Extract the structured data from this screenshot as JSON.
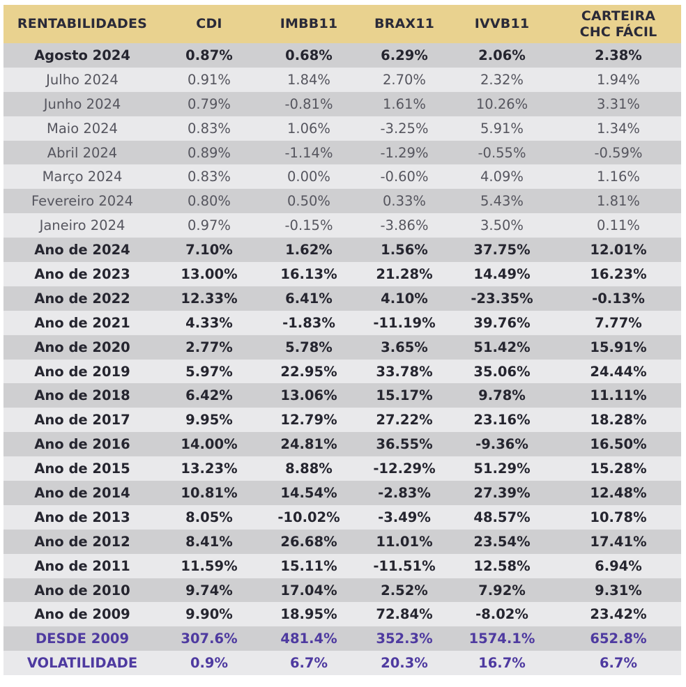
{
  "header": {
    "label": "RENTABILIDADES",
    "columns": [
      "CDI",
      "IMBB11",
      "BRAX11",
      "IVVB11"
    ],
    "last_column_line1": "CARTEIRA",
    "last_column_line2": "CHC FÁCIL"
  },
  "rows": [
    {
      "label": "Agosto 2024",
      "values": [
        "0.87%",
        "0.68%",
        "6.29%",
        "2.06%",
        "2.38%"
      ],
      "style": "bold"
    },
    {
      "label": "Julho 2024",
      "values": [
        "0.91%",
        "1.84%",
        "2.70%",
        "2.32%",
        "1.94%"
      ],
      "style": "normal"
    },
    {
      "label": "Junho 2024",
      "values": [
        "0.79%",
        "-0.81%",
        "1.61%",
        "10.26%",
        "3.31%"
      ],
      "style": "normal"
    },
    {
      "label": "Maio 2024",
      "values": [
        "0.83%",
        "1.06%",
        "-3.25%",
        "5.91%",
        "1.34%"
      ],
      "style": "normal"
    },
    {
      "label": "Abril 2024",
      "values": [
        "0.89%",
        "-1.14%",
        "-1.29%",
        "-0.55%",
        "-0.59%"
      ],
      "style": "normal"
    },
    {
      "label": "Março 2024",
      "values": [
        "0.83%",
        "0.00%",
        "-0.60%",
        "4.09%",
        "1.16%"
      ],
      "style": "normal"
    },
    {
      "label": "Fevereiro 2024",
      "values": [
        "0.80%",
        "0.50%",
        "0.33%",
        "5.43%",
        "1.81%"
      ],
      "style": "normal"
    },
    {
      "label": "Janeiro 2024",
      "values": [
        "0.97%",
        "-0.15%",
        "-3.86%",
        "3.50%",
        "0.11%"
      ],
      "style": "normal"
    },
    {
      "label": "Ano de 2024",
      "values": [
        "7.10%",
        "1.62%",
        "1.56%",
        "37.75%",
        "12.01%"
      ],
      "style": "bold"
    },
    {
      "label": "Ano de 2023",
      "values": [
        "13.00%",
        "16.13%",
        "21.28%",
        "14.49%",
        "16.23%"
      ],
      "style": "bold"
    },
    {
      "label": "Ano de 2022",
      "values": [
        "12.33%",
        "6.41%",
        "4.10%",
        "-23.35%",
        "-0.13%"
      ],
      "style": "bold"
    },
    {
      "label": "Ano de 2021",
      "values": [
        "4.33%",
        "-1.83%",
        "-11.19%",
        "39.76%",
        "7.77%"
      ],
      "style": "bold"
    },
    {
      "label": "Ano de 2020",
      "values": [
        "2.77%",
        "5.78%",
        "3.65%",
        "51.42%",
        "15.91%"
      ],
      "style": "bold"
    },
    {
      "label": "Ano de 2019",
      "values": [
        "5.97%",
        "22.95%",
        "33.78%",
        "35.06%",
        "24.44%"
      ],
      "style": "bold"
    },
    {
      "label": "Ano de 2018",
      "values": [
        "6.42%",
        "13.06%",
        "15.17%",
        "9.78%",
        "11.11%"
      ],
      "style": "bold"
    },
    {
      "label": "Ano de 2017",
      "values": [
        "9.95%",
        "12.79%",
        "27.22%",
        "23.16%",
        "18.28%"
      ],
      "style": "bold"
    },
    {
      "label": "Ano de 2016",
      "values": [
        "14.00%",
        "24.81%",
        "36.55%",
        "-9.36%",
        "16.50%"
      ],
      "style": "bold"
    },
    {
      "label": "Ano de 2015",
      "values": [
        "13.23%",
        "8.88%",
        "-12.29%",
        "51.29%",
        "15.28%"
      ],
      "style": "bold"
    },
    {
      "label": "Ano de 2014",
      "values": [
        "10.81%",
        "14.54%",
        "-2.83%",
        "27.39%",
        "12.48%"
      ],
      "style": "bold"
    },
    {
      "label": "Ano de 2013",
      "values": [
        "8.05%",
        "-10.02%",
        "-3.49%",
        "48.57%",
        "10.78%"
      ],
      "style": "bold"
    },
    {
      "label": "Ano de 2012",
      "values": [
        "8.41%",
        "26.68%",
        "11.01%",
        "23.54%",
        "17.41%"
      ],
      "style": "bold"
    },
    {
      "label": "Ano de 2011",
      "values": [
        "11.59%",
        "15.11%",
        "-11.51%",
        "12.58%",
        "6.94%"
      ],
      "style": "bold"
    },
    {
      "label": "Ano de 2010",
      "values": [
        "9.74%",
        "17.04%",
        "2.52%",
        "7.92%",
        "9.31%"
      ],
      "style": "bold"
    },
    {
      "label": "Ano de 2009",
      "values": [
        "9.90%",
        "18.95%",
        "72.84%",
        "-8.02%",
        "23.42%"
      ],
      "style": "bold"
    },
    {
      "label": "DESDE 2009",
      "values": [
        "307.6%",
        "481.4%",
        "352.3%",
        "1574.1%",
        "652.8%"
      ],
      "style": "summary"
    },
    {
      "label": "VOLATILIDADE",
      "values": [
        "0.9%",
        "6.7%",
        "20.3%",
        "16.7%",
        "6.7%"
      ],
      "style": "summary"
    }
  ],
  "colors": {
    "header_bg": "#e9d28f",
    "row_dark": "#cfcfd1",
    "row_light": "#e9e9eb",
    "summary_text": "#4e3aa0"
  }
}
